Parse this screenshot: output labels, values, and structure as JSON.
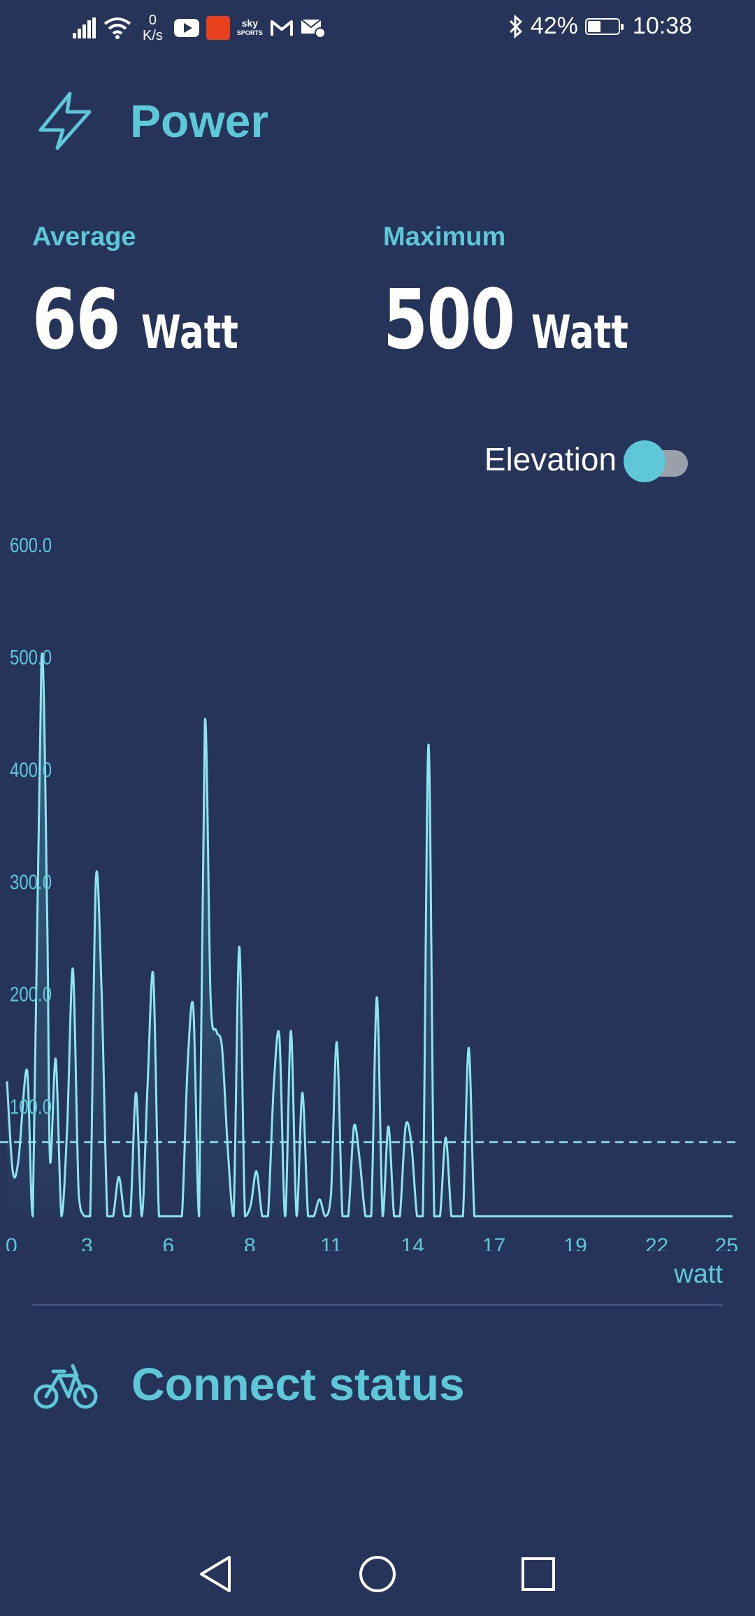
{
  "status_bar": {
    "net_speed_value": "0",
    "net_speed_unit": "K/s",
    "app_sky_line1": "sky",
    "app_sky_line2": "SPORTS",
    "battery_percent": "42%",
    "battery_level": 0.42,
    "time": "10:38"
  },
  "power_section": {
    "title": "Power",
    "icon": "lightning-bolt-icon",
    "average": {
      "label": "Average",
      "value": "66",
      "unit": "Watt"
    },
    "maximum": {
      "label": "Maximum",
      "value": "500",
      "unit": "Watt"
    },
    "elevation": {
      "label": "Elevation",
      "enabled": true
    }
  },
  "chart_data": {
    "type": "line",
    "ylim": [
      0,
      600
    ],
    "y_ticks": [
      "100.0",
      "200.0",
      "300.0",
      "400.0",
      "500.0",
      "600.0"
    ],
    "x_ticks": [
      "0",
      "3",
      "6",
      "8",
      "11",
      "14",
      "17",
      "19",
      "22",
      "25"
    ],
    "xlim": [
      0,
      25.5
    ],
    "unit_label": "watt",
    "average_line": 66,
    "line_color": "#8ee4ef",
    "x": [
      0,
      0.2,
      0.4,
      0.7,
      0.9,
      1.2,
      1.4,
      1.5,
      1.7,
      1.9,
      2.1,
      2.3,
      2.5,
      2.7,
      2.9,
      3.1,
      3.3,
      3.5,
      3.7,
      3.9,
      4.1,
      4.3,
      4.5,
      4.7,
      4.9,
      5.1,
      5.3,
      5.5,
      5.7,
      5.9,
      6.1,
      6.3,
      6.5,
      6.7,
      6.9,
      7.1,
      7.3,
      7.5,
      7.7,
      7.9,
      8.1,
      8.3,
      8.5,
      8.7,
      8.9,
      9.1,
      9.3,
      9.5,
      9.7,
      9.9,
      10.1,
      10.3,
      10.5,
      10.7,
      10.9,
      11.1,
      11.3,
      11.5,
      11.7,
      11.9,
      12.1,
      12.3,
      12.5,
      12.7,
      12.9,
      13.1,
      13.3,
      13.5,
      13.7,
      13.9,
      14.1,
      14.3,
      14.5,
      14.7,
      14.9,
      15.1,
      15.3,
      15.5,
      15.7,
      15.9,
      16.1,
      16.3,
      16.5,
      16.7,
      16.9,
      17.1,
      17.3,
      17.5,
      17.7,
      17.9,
      18.1,
      18.3,
      18.5,
      18.7,
      18.9,
      19.1,
      19.3,
      19.5,
      19.7,
      19.9,
      20.1,
      20.3,
      20.5,
      20.7,
      20.9,
      21.1,
      21.3,
      21.5,
      21.7,
      21.9,
      22.1,
      22.3,
      22.5,
      22.7,
      22.9,
      23.1,
      23.3,
      23.5,
      23.7,
      23.9,
      24.1,
      24.3,
      24.5,
      24.7,
      24.9,
      25.1,
      25.3
    ],
    "y": [
      120,
      40,
      50,
      130,
      0,
      495,
      270,
      50,
      140,
      0,
      80,
      220,
      20,
      0,
      0,
      300,
      200,
      0,
      0,
      35,
      0,
      0,
      110,
      0,
      115,
      215,
      0,
      0,
      0,
      0,
      0,
      135,
      185,
      0,
      440,
      195,
      165,
      150,
      60,
      0,
      240,
      0,
      10,
      40,
      0,
      0,
      115,
      160,
      0,
      165,
      0,
      110,
      0,
      0,
      15,
      0,
      20,
      155,
      0,
      0,
      80,
      50,
      0,
      0,
      195,
      0,
      80,
      0,
      0,
      80,
      65,
      0,
      0,
      420,
      0,
      0,
      70,
      0,
      0,
      0,
      150,
      0,
      0,
      0,
      0,
      0,
      0,
      0,
      0,
      0,
      0,
      0,
      0,
      0,
      0,
      0,
      0,
      0,
      0,
      0,
      0,
      0,
      0,
      0,
      0,
      0,
      0,
      0,
      0,
      0,
      0,
      0,
      0,
      0,
      0,
      0,
      0,
      0,
      0,
      0,
      0,
      0,
      0,
      0,
      0,
      0,
      0
    ]
  },
  "connect_section": {
    "title": "Connect status",
    "icon": "bicycle-icon"
  },
  "nav_bar": {
    "back": "back-triangle-icon",
    "home": "home-circle-icon",
    "recents": "recents-square-icon"
  }
}
